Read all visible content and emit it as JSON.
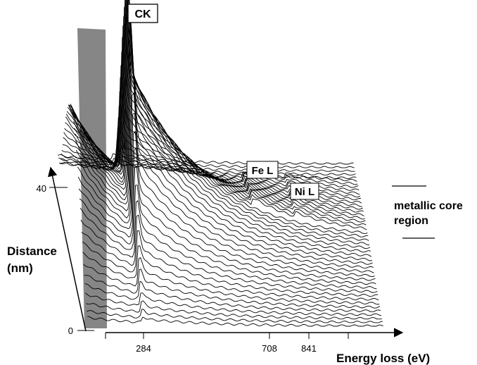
{
  "chart_data": {
    "type": "line",
    "title": "",
    "style": "waterfall-3d",
    "xlabel": "Energy loss (eV)",
    "ylabel": "Distance (nm)",
    "x_ticks": [
      284,
      708,
      841
    ],
    "x_tick_labels": [
      "284",
      "708",
      "841"
    ],
    "y_ticks": [
      0,
      40
    ],
    "y_tick_labels": [
      "0",
      "40"
    ],
    "x_range": [
      100,
      1100
    ],
    "y_range": [
      0,
      60
    ],
    "n_spectra": 46,
    "edge_labels": [
      {
        "text": "CK",
        "energy": 284,
        "boxed": true
      },
      {
        "text": "Fe L",
        "energy": 708,
        "boxed": true
      },
      {
        "text": "Ni L",
        "energy": 855,
        "boxed": true
      }
    ],
    "region_annotation": {
      "lines": [
        "metallic core",
        "region"
      ],
      "distance_range": [
        28,
        40
      ]
    },
    "grid": false,
    "legend": "none"
  },
  "colors": {
    "line": "#000000",
    "background": "#ffffff"
  }
}
